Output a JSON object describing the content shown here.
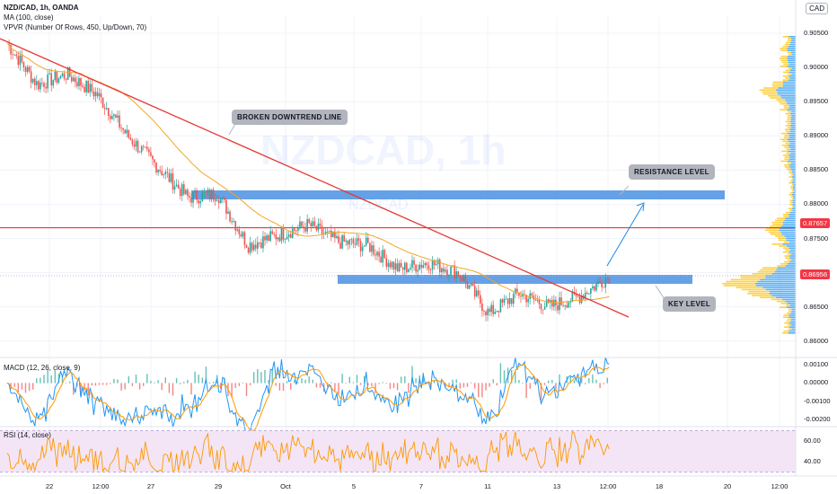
{
  "header": {
    "symbol_line": "NZD/CAD, 1h, OANDA",
    "ma_line": "MA (100, close)",
    "vpvr_line": "VPVR (Number Of Rows, 450, Up/Down, 70)",
    "currency": "CAD"
  },
  "watermark": {
    "symbol": "NZDCAD, 1h",
    "sub": "NZDCAD"
  },
  "annotations": {
    "downtrend": "BROKEN DOWNTREND LINE",
    "resistance": "RESISTANCE LEVEL",
    "key": "KEY LEVEL"
  },
  "price_axis": {
    "ticks": [
      "0.90500",
      "0.90000",
      "0.89500",
      "0.89000",
      "0.88500",
      "0.88000",
      "0.87500",
      "0.87000",
      "0.86500",
      "0.86000"
    ],
    "tick_values": [
      0.905,
      0.9,
      0.895,
      0.89,
      0.885,
      0.88,
      0.875,
      0.87,
      0.865,
      0.86
    ],
    "range": [
      0.858,
      0.9075
    ],
    "horizontal_line_price": "0.87657",
    "last_price": "0.86956"
  },
  "time_axis": {
    "labels": [
      "22",
      "12:00",
      "27",
      "29",
      "Oct",
      "5",
      "7",
      "11",
      "13",
      "12:00",
      "18",
      "20",
      "12:00"
    ]
  },
  "macd": {
    "label": "MACD (12, 26, close, 9)",
    "ticks": [
      "0.00100",
      "0.00000",
      "-0.00100",
      "-0.00200"
    ],
    "tick_values": [
      0.001,
      0.0,
      -0.001,
      -0.002
    ]
  },
  "rsi": {
    "label": "RSI (14, close)",
    "ticks": [
      "60.00",
      "40.00"
    ],
    "tick_values": [
      60,
      40
    ],
    "band": [
      30,
      70
    ]
  },
  "colors": {
    "up": "#26a69a",
    "down": "#ef5350",
    "trend": "#e53935",
    "ma": "#f5a623",
    "zone": "#4a90e2",
    "vp_up": "#2196f3",
    "vp_down": "#ffc107",
    "macd_line": "#2196f3",
    "signal_line": "#ff9800",
    "rsi_line": "#ff9800",
    "rsi_band": "#f3e5f5"
  },
  "chart_data": {
    "type": "candlestick",
    "approx_path": [
      {
        "x": "Sep 21",
        "y": 0.9035
      },
      {
        "x": "Sep 22",
        "y": 0.8975
      },
      {
        "x": "Sep 22 12:00",
        "y": 0.899
      },
      {
        "x": "Sep 24",
        "y": 0.896
      },
      {
        "x": "Sep 25",
        "y": 0.89
      },
      {
        "x": "Sep 27",
        "y": 0.8855
      },
      {
        "x": "Sep 28",
        "y": 0.881
      },
      {
        "x": "Sep 29",
        "y": 0.8815
      },
      {
        "x": "Sep 30",
        "y": 0.874
      },
      {
        "x": "Oct 1",
        "y": 0.8755
      },
      {
        "x": "Oct 2",
        "y": 0.877
      },
      {
        "x": "Oct 5",
        "y": 0.8745
      },
      {
        "x": "Oct 6",
        "y": 0.874
      },
      {
        "x": "Oct 7",
        "y": 0.8705
      },
      {
        "x": "Oct 8",
        "y": 0.8715
      },
      {
        "x": "Oct 9",
        "y": 0.87
      },
      {
        "x": "Oct 11",
        "y": 0.864
      },
      {
        "x": "Oct 12",
        "y": 0.867
      },
      {
        "x": "Oct 13",
        "y": 0.865
      },
      {
        "x": "Oct 14",
        "y": 0.8665
      },
      {
        "x": "Oct 14 12:00",
        "y": 0.8695
      }
    ],
    "levels": {
      "resistance": 0.8805,
      "key_level": 0.8685,
      "red_line": 0.87657
    }
  }
}
